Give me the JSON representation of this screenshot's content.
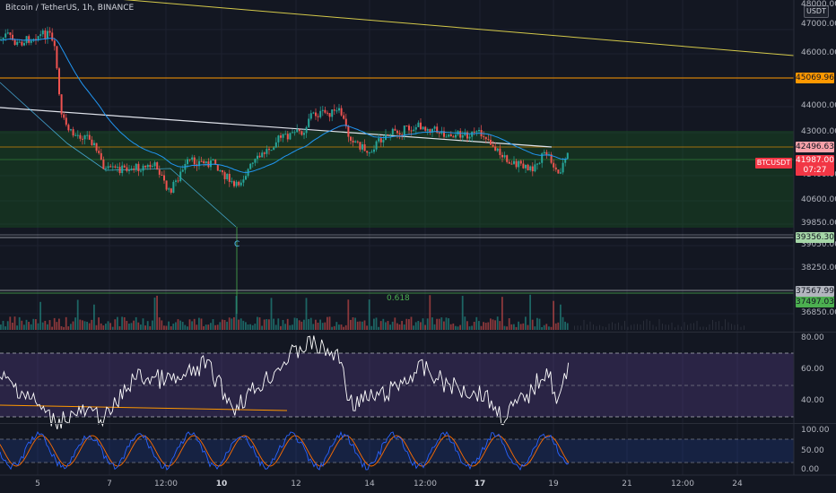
{
  "header": {
    "title": "Bitcoin / TetherUS, 1h, BINANCE",
    "currency_button": "USDT"
  },
  "price_axis": {
    "ticks": [
      "48000.00",
      "47000.00",
      "46000.00",
      "44000.00",
      "43000.00",
      "42200.00",
      "41400.00",
      "40600.00",
      "39850.00",
      "39050.00",
      "38250.00",
      "36850.00"
    ]
  },
  "price_tags": [
    {
      "value": "45069.96",
      "color": "#ff9800"
    },
    {
      "value": "42496.63",
      "color": "#f7a1a9"
    },
    {
      "value": "41987.00",
      "color": "#f23645"
    },
    {
      "value": "07:27",
      "color": "#f23645"
    },
    {
      "value": "39356.30",
      "color": "#a5d6a7"
    },
    {
      "value": "37567.99",
      "color": "#b2b5be"
    },
    {
      "value": "37497.03",
      "color": "#4caf50"
    }
  ],
  "symbol_tag": "BTCUSDT",
  "annotations": {
    "wave_label": "C",
    "fib_label": "0.618"
  },
  "rsi_axis": {
    "ticks": [
      "80.00",
      "60.00",
      "40.00"
    ]
  },
  "stoch_axis": {
    "ticks": [
      "100.00",
      "50.00",
      "0.00"
    ]
  },
  "time_axis": {
    "ticks": [
      "5",
      "7",
      "12:00",
      "10",
      "12",
      "14",
      "12:00",
      "17",
      "19",
      "21",
      "12:00",
      "24"
    ]
  },
  "colors": {
    "background": "#131722",
    "up": "#26a69a",
    "down": "#ef5350",
    "ema": "#2962ff",
    "trendline_yellow": "#d4c94a",
    "rsi_line": "#ffffff",
    "rsi_band": "#7e57c2",
    "stoch_k": "#2962ff",
    "stoch_d": "#ff6d00"
  }
}
